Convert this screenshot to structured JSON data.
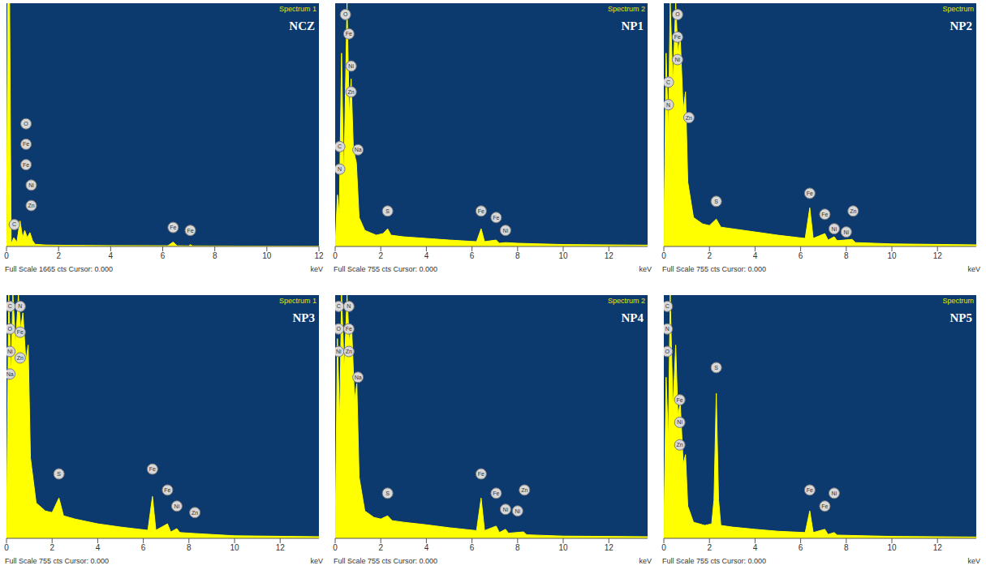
{
  "chart_data": [
    {
      "type": "area",
      "title": "NCZ",
      "subtitle": "Spectrum 1",
      "caption": "Full Scale 1665 cts Cursor: 0.000",
      "x_label": "keV",
      "color": "#ffff00",
      "tick_labels": "x",
      "xlim": [
        0,
        12
      ],
      "xticks": [
        0,
        2,
        4,
        6,
        8,
        10,
        12
      ],
      "ylim": [
        0,
        1665
      ],
      "x": [
        0,
        0.05,
        0.12,
        0.18,
        0.28,
        0.4,
        0.52,
        0.62,
        0.7,
        0.8,
        0.9,
        1.0,
        1.1,
        1.5,
        2.3,
        4,
        6.2,
        6.4,
        6.55,
        7.0,
        7.06,
        7.15,
        9,
        12
      ],
      "values": [
        0,
        1665,
        1665,
        20,
        60,
        30,
        175,
        60,
        110,
        60,
        95,
        40,
        15,
        10,
        8,
        6,
        5,
        30,
        5,
        4,
        12,
        4,
        3,
        2
      ],
      "markers": [
        {
          "label": "C",
          "x": 0.3,
          "y": 150
        },
        {
          "label": "O",
          "x": 0.75,
          "y": 840
        },
        {
          "label": "Fe",
          "x": 0.75,
          "y": 700
        },
        {
          "label": "Fe",
          "x": 0.75,
          "y": 560
        },
        {
          "label": "Ni",
          "x": 0.95,
          "y": 420
        },
        {
          "label": "Zn",
          "x": 0.95,
          "y": 280
        },
        {
          "label": "Fe",
          "x": 6.4,
          "y": 130
        },
        {
          "label": "Fe",
          "x": 7.06,
          "y": 110
        }
      ]
    },
    {
      "type": "area",
      "title": "NP1",
      "subtitle": "Spectrum 2",
      "caption": "Full Scale 755 cts Cursor: 0.000",
      "x_label": "keV",
      "color": "#ffff00",
      "tick_labels": "x",
      "xlim": [
        0,
        13.7
      ],
      "xticks": [
        0,
        2,
        4,
        6,
        8,
        10,
        12
      ],
      "ylim": [
        0,
        755
      ],
      "x": [
        0,
        0.1,
        0.18,
        0.28,
        0.38,
        0.52,
        0.62,
        0.7,
        0.8,
        0.93,
        1.05,
        1.3,
        1.8,
        2.1,
        2.3,
        2.45,
        3,
        4,
        5,
        6.2,
        6.4,
        6.55,
        7.06,
        7.2,
        7.47,
        8,
        10,
        13.7
      ],
      "values": [
        0,
        160,
        100,
        600,
        200,
        755,
        400,
        520,
        300,
        260,
        90,
        50,
        35,
        40,
        55,
        35,
        30,
        25,
        20,
        15,
        55,
        15,
        20,
        10,
        12,
        10,
        6,
        4
      ],
      "markers": [
        {
          "label": "C",
          "x": 0.2,
          "y": 310
        },
        {
          "label": "N",
          "x": 0.2,
          "y": 240
        },
        {
          "label": "O",
          "x": 0.45,
          "y": 720
        },
        {
          "label": "Fe",
          "x": 0.6,
          "y": 660
        },
        {
          "label": "Ni",
          "x": 0.7,
          "y": 560
        },
        {
          "label": "Zn",
          "x": 0.7,
          "y": 480
        },
        {
          "label": "Na",
          "x": 1.0,
          "y": 300
        },
        {
          "label": "S",
          "x": 2.3,
          "y": 110
        },
        {
          "label": "Fe",
          "x": 6.4,
          "y": 110
        },
        {
          "label": "Fe",
          "x": 7.06,
          "y": 90
        },
        {
          "label": "Ni",
          "x": 7.47,
          "y": 50
        }
      ]
    },
    {
      "type": "area",
      "title": "NP2",
      "subtitle": "Spectrum",
      "caption": "Full Scale 755 cts Cursor: 0.000",
      "x_label": "keV",
      "color": "#ffff00",
      "tick_labels": "x",
      "xlim": [
        0,
        13.7
      ],
      "xticks": [
        0,
        2,
        4,
        6,
        8,
        10,
        12
      ],
      "ylim": [
        0,
        755
      ],
      "x": [
        0,
        0.1,
        0.2,
        0.28,
        0.4,
        0.52,
        0.62,
        0.72,
        0.85,
        0.95,
        1.05,
        1.3,
        1.7,
        2.0,
        2.3,
        2.5,
        3,
        4,
        5,
        6.2,
        6.4,
        6.55,
        7.06,
        7.2,
        7.47,
        7.6,
        8.26,
        8.4,
        10,
        13.7
      ],
      "values": [
        0,
        600,
        350,
        755,
        500,
        755,
        600,
        650,
        420,
        480,
        200,
        90,
        70,
        65,
        85,
        60,
        55,
        45,
        35,
        25,
        120,
        25,
        40,
        20,
        30,
        18,
        22,
        12,
        8,
        5
      ],
      "markers": [
        {
          "label": "C",
          "x": 0.2,
          "y": 510
        },
        {
          "label": "N",
          "x": 0.2,
          "y": 440
        },
        {
          "label": "O",
          "x": 0.6,
          "y": 720
        },
        {
          "label": "Fe",
          "x": 0.6,
          "y": 650
        },
        {
          "label": "Ni",
          "x": 0.6,
          "y": 580
        },
        {
          "label": "Zn",
          "x": 1.1,
          "y": 400
        },
        {
          "label": "S",
          "x": 2.3,
          "y": 140
        },
        {
          "label": "Fe",
          "x": 6.4,
          "y": 165
        },
        {
          "label": "Fe",
          "x": 7.06,
          "y": 100
        },
        {
          "label": "Ni",
          "x": 7.47,
          "y": 55
        },
        {
          "label": "Ni",
          "x": 8.0,
          "y": 45
        },
        {
          "label": "Zn",
          "x": 8.3,
          "y": 110
        }
      ]
    },
    {
      "type": "area",
      "title": "NP3",
      "subtitle": "Spectrum 1",
      "caption": "Full Scale 755 cts Cursor: 0.000",
      "x_label": "keV",
      "color": "#ffff00",
      "tick_labels": "x",
      "xlim": [
        0,
        13.7
      ],
      "xticks": [
        0,
        2,
        4,
        6,
        8,
        10,
        12
      ],
      "ylim": [
        0,
        755
      ],
      "x": [
        0,
        0.1,
        0.2,
        0.28,
        0.4,
        0.52,
        0.62,
        0.72,
        0.85,
        0.95,
        1.05,
        1.3,
        1.7,
        2.0,
        2.3,
        2.5,
        3,
        4,
        5,
        6.2,
        6.4,
        6.55,
        7.06,
        7.2,
        7.47,
        7.6,
        8.26,
        10,
        13.7
      ],
      "values": [
        0,
        755,
        500,
        755,
        600,
        755,
        650,
        700,
        550,
        600,
        250,
        110,
        85,
        80,
        125,
        70,
        60,
        45,
        35,
        25,
        130,
        25,
        45,
        20,
        30,
        18,
        15,
        8,
        5
      ],
      "markers": [
        {
          "label": "C",
          "x": 0.15,
          "y": 720
        },
        {
          "label": "N",
          "x": 0.6,
          "y": 720
        },
        {
          "label": "O",
          "x": 0.15,
          "y": 650
        },
        {
          "label": "Fe",
          "x": 0.6,
          "y": 640
        },
        {
          "label": "Ni",
          "x": 0.15,
          "y": 580
        },
        {
          "label": "Zn",
          "x": 0.6,
          "y": 560
        },
        {
          "label": "Na",
          "x": 0.15,
          "y": 510
        },
        {
          "label": "S",
          "x": 2.3,
          "y": 200
        },
        {
          "label": "Fe",
          "x": 6.4,
          "y": 215
        },
        {
          "label": "Fe",
          "x": 7.06,
          "y": 150
        },
        {
          "label": "Ni",
          "x": 7.47,
          "y": 100
        },
        {
          "label": "Zn",
          "x": 8.26,
          "y": 80
        }
      ]
    },
    {
      "type": "area",
      "title": "NP4",
      "subtitle": "Spectrum 2",
      "caption": "Full Scale 755 cts Cursor: 0.000",
      "x_label": "keV",
      "color": "#ffff00",
      "tick_labels": "x",
      "xlim": [
        0,
        13.7
      ],
      "xticks": [
        0,
        2,
        4,
        6,
        8,
        10,
        12
      ],
      "ylim": [
        0,
        755
      ],
      "x": [
        0,
        0.1,
        0.2,
        0.28,
        0.4,
        0.52,
        0.62,
        0.72,
        0.85,
        0.95,
        1.05,
        1.3,
        1.7,
        2.0,
        2.3,
        2.5,
        3,
        4,
        5,
        6.2,
        6.4,
        6.55,
        7.06,
        7.2,
        7.47,
        7.6,
        8.26,
        8.4,
        10,
        13.7
      ],
      "values": [
        0,
        620,
        360,
        755,
        520,
        755,
        610,
        660,
        430,
        480,
        190,
        85,
        65,
        60,
        70,
        55,
        50,
        42,
        33,
        24,
        125,
        24,
        38,
        18,
        28,
        16,
        20,
        11,
        7,
        5
      ],
      "markers": [
        {
          "label": "C",
          "x": 0.15,
          "y": 720
        },
        {
          "label": "N",
          "x": 0.6,
          "y": 720
        },
        {
          "label": "O",
          "x": 0.15,
          "y": 650
        },
        {
          "label": "Fe",
          "x": 0.6,
          "y": 650
        },
        {
          "label": "Ni",
          "x": 0.15,
          "y": 580
        },
        {
          "label": "Zn",
          "x": 0.6,
          "y": 580
        },
        {
          "label": "Na",
          "x": 1.0,
          "y": 500
        },
        {
          "label": "S",
          "x": 2.3,
          "y": 140
        },
        {
          "label": "Fe",
          "x": 6.4,
          "y": 200
        },
        {
          "label": "Fe",
          "x": 7.06,
          "y": 140
        },
        {
          "label": "Ni",
          "x": 7.47,
          "y": 90
        },
        {
          "label": "Ni",
          "x": 8.0,
          "y": 85
        },
        {
          "label": "Zn",
          "x": 8.3,
          "y": 150
        }
      ]
    },
    {
      "type": "area",
      "title": "NP5",
      "subtitle": "Spectrum",
      "caption": "Full Scale 755 cts Cursor: 0.000",
      "x_label": "keV",
      "color": "#ffff00",
      "tick_labels": "x",
      "xlim": [
        0,
        13.7
      ],
      "xticks": [
        0,
        2,
        4,
        6,
        8,
        10,
        12
      ],
      "ylim": [
        0,
        755
      ],
      "x": [
        0,
        0.1,
        0.2,
        0.28,
        0.4,
        0.52,
        0.62,
        0.72,
        0.85,
        0.95,
        1.05,
        1.3,
        1.8,
        2.1,
        2.2,
        2.3,
        2.4,
        2.5,
        3,
        4,
        5,
        6.2,
        6.4,
        6.55,
        7.06,
        7.2,
        7.47,
        7.6,
        10,
        13.7
      ],
      "values": [
        0,
        500,
        300,
        755,
        400,
        600,
        380,
        420,
        230,
        260,
        100,
        50,
        40,
        45,
        120,
        450,
        120,
        40,
        35,
        28,
        22,
        18,
        85,
        18,
        28,
        12,
        18,
        10,
        6,
        4
      ],
      "markers": [
        {
          "label": "C",
          "x": 0.15,
          "y": 720
        },
        {
          "label": "N",
          "x": 0.15,
          "y": 650
        },
        {
          "label": "O",
          "x": 0.15,
          "y": 580
        },
        {
          "label": "Fe",
          "x": 0.7,
          "y": 430
        },
        {
          "label": "Ni",
          "x": 0.7,
          "y": 360
        },
        {
          "label": "Zn",
          "x": 0.7,
          "y": 290
        },
        {
          "label": "S",
          "x": 2.3,
          "y": 530
        },
        {
          "label": "Fe",
          "x": 6.4,
          "y": 150
        },
        {
          "label": "Fe",
          "x": 7.06,
          "y": 100
        },
        {
          "label": "Ni",
          "x": 7.47,
          "y": 140
        }
      ]
    }
  ]
}
